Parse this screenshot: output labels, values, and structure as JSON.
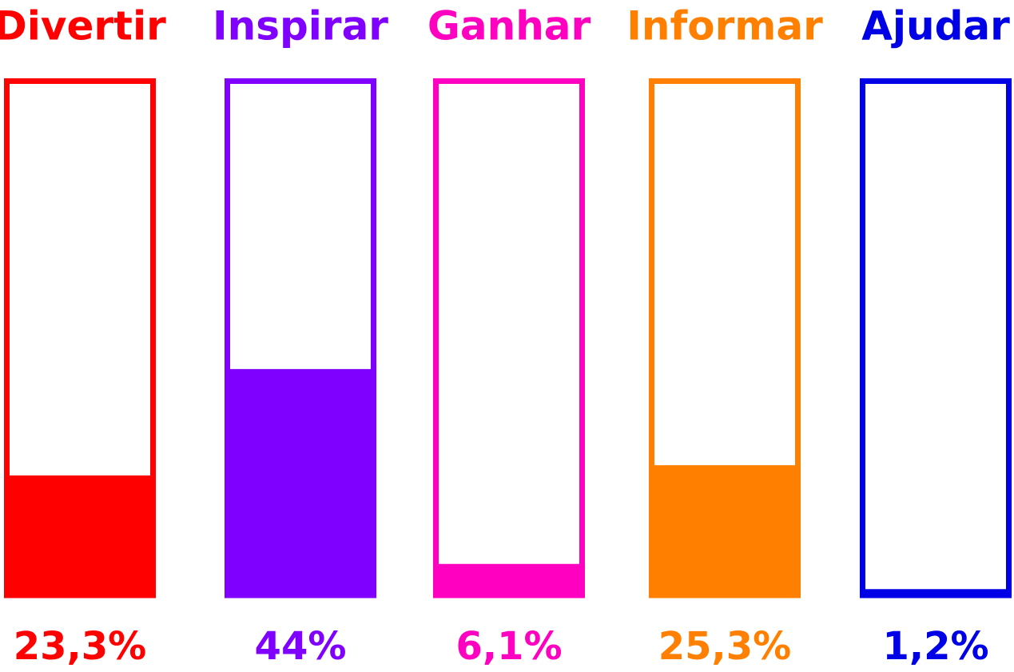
{
  "chart_data": {
    "type": "bar",
    "title": "",
    "xlabel": "",
    "ylabel": "",
    "ylim": [
      0,
      100
    ],
    "grid": false,
    "legend": "none",
    "categories": [
      "Divertir",
      "Inspirar",
      "Ganhar",
      "Informar",
      "Ajudar"
    ],
    "values": [
      23.3,
      44,
      6.1,
      25.3,
      1.2
    ],
    "value_labels": [
      "23,3%",
      "44%",
      "6,1%",
      "25,3%",
      "1,2%"
    ],
    "colors": [
      "#ff0000",
      "#8000ff",
      "#ff00c0",
      "#ff8000",
      "#0000e6"
    ]
  }
}
